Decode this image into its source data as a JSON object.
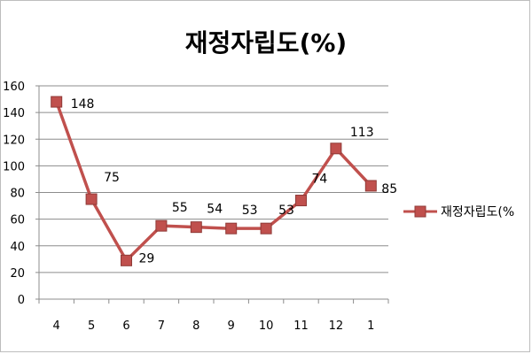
{
  "chart_data": {
    "type": "line",
    "title": "재정자립도(%)",
    "categories": [
      "4",
      "5",
      "6",
      "7",
      "8",
      "9",
      "10",
      "11",
      "12",
      "1"
    ],
    "series": [
      {
        "name": "재정자립도(%)",
        "values": [
          148,
          75,
          29,
          55,
          54,
          53,
          53,
          74,
          113,
          85
        ],
        "color": "#c0504d",
        "marker_color": "#c0504d"
      }
    ],
    "data_labels": [
      "148",
      "75",
      "29",
      "55",
      "54",
      "53",
      "53",
      "74",
      "113",
      "85"
    ],
    "ylim": [
      0,
      160
    ],
    "yticks": [
      "0",
      "20",
      "40",
      "60",
      "80",
      "100",
      "120",
      "140",
      "160"
    ],
    "grid": true,
    "legend": "right",
    "legend_label": "재정자립도(%"
  }
}
